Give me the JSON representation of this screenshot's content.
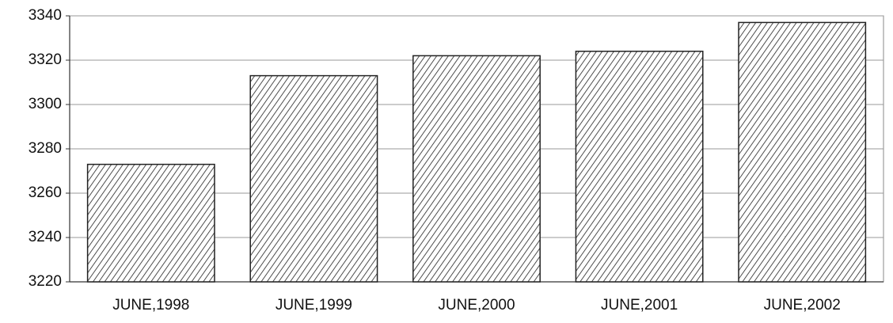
{
  "chart_data": {
    "type": "bar",
    "categories": [
      "JUNE,1998",
      "JUNE,1999",
      "JUNE,2000",
      "JUNE,2001",
      "JUNE,2002"
    ],
    "values": [
      3273,
      3313,
      3322,
      3324,
      3337
    ],
    "color": "#222222",
    "ylim": [
      3220,
      3340
    ],
    "yticks": [
      3220,
      3240,
      3260,
      3280,
      3300,
      3320,
      3340
    ],
    "grid": true
  }
}
